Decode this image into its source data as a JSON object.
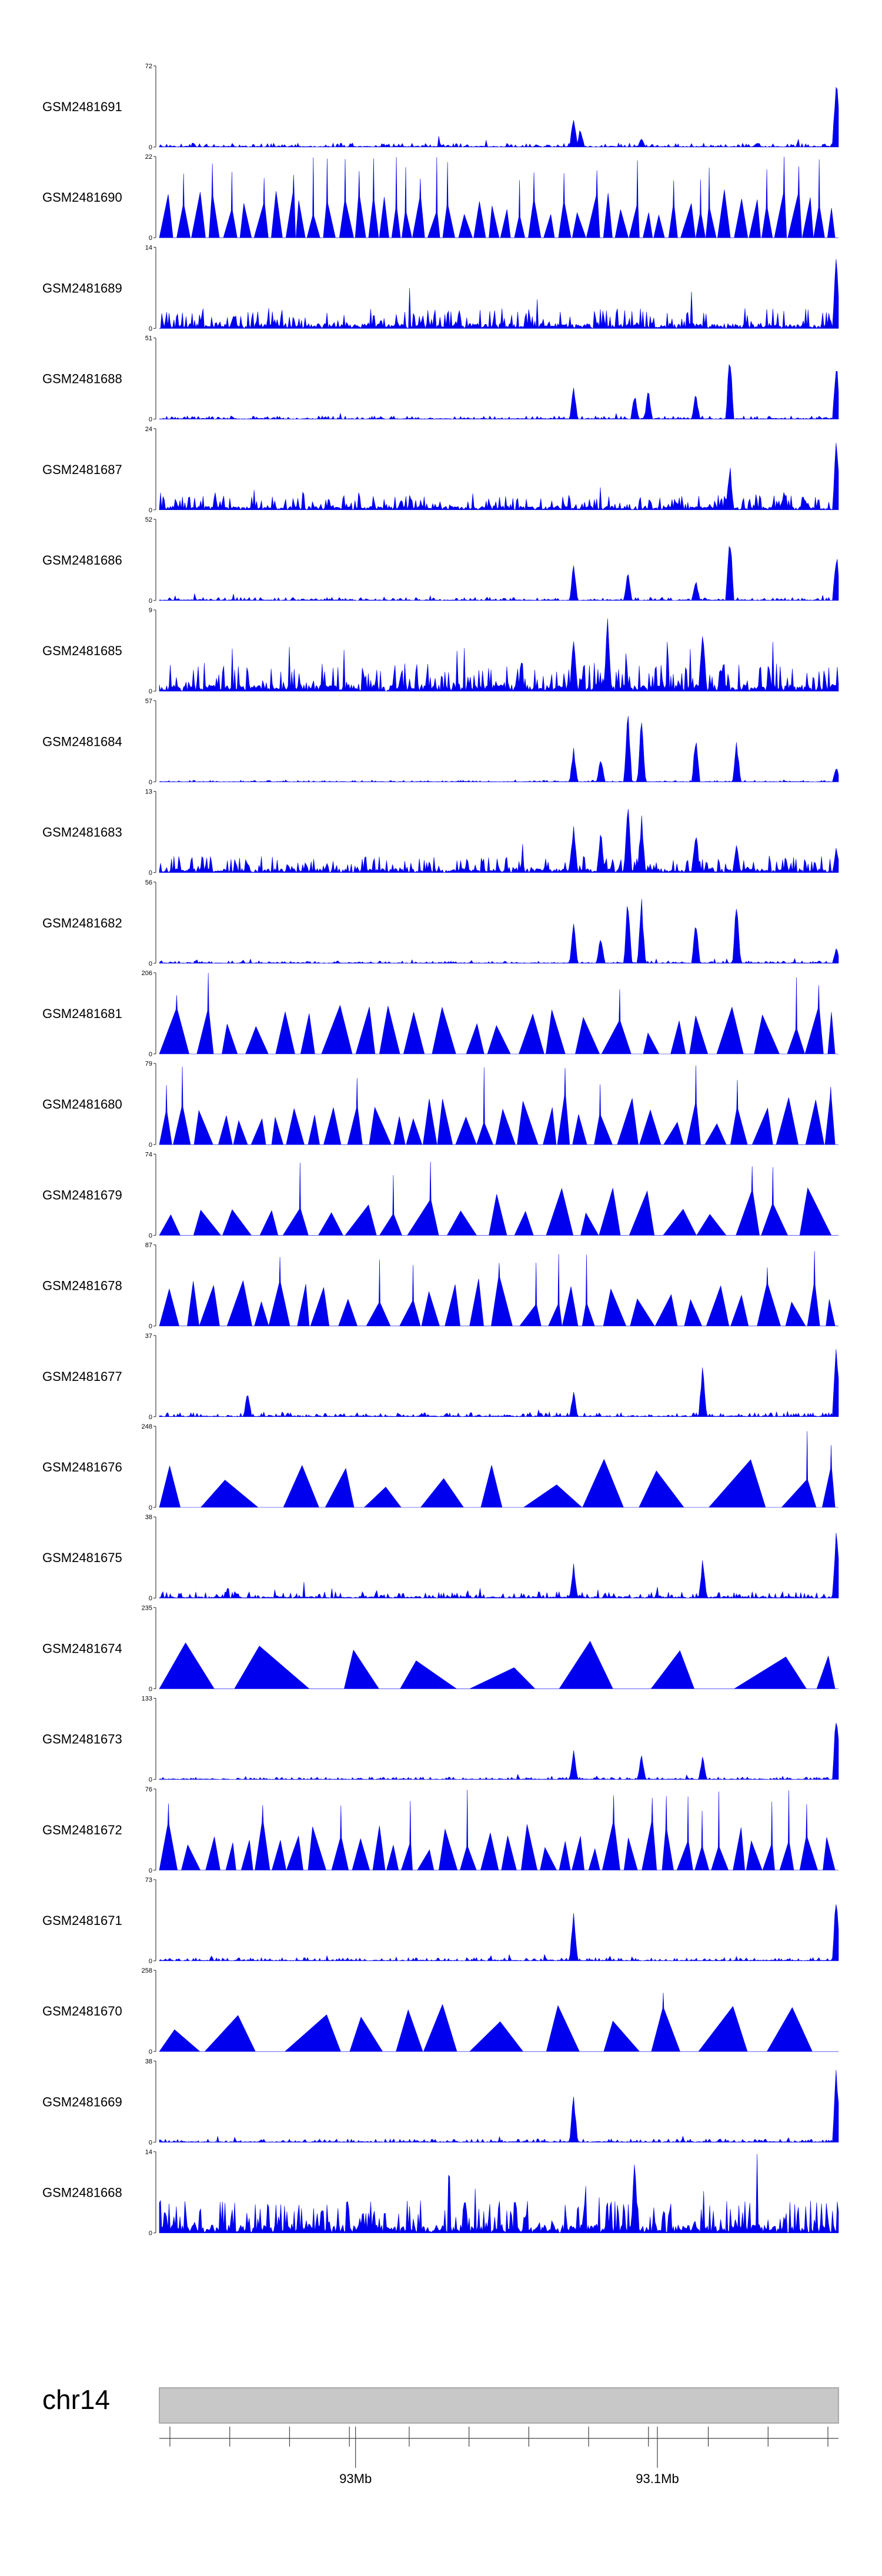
{
  "chart_data": {
    "type": "area",
    "title": "",
    "xlabel": "",
    "ylabel": "",
    "region_start_mb": 92.935,
    "region_end_mb": 93.16,
    "colors": {
      "signal": "#0000ee",
      "axis": "#444444",
      "ideogram_fill": "#c8c8c8",
      "ideogram_stroke": "#999999"
    },
    "tracks": [
      {
        "name": "GSM2481691",
        "ymin": "0",
        "ymax": "72",
        "style": "dense",
        "seed": 1,
        "noise": 0.05,
        "peaks": [
          [
            0.61,
            0.42
          ],
          [
            0.62,
            0.25
          ],
          [
            0.71,
            0.12
          ],
          [
            0.997,
            1.0
          ]
        ]
      },
      {
        "name": "GSM2481690",
        "ymin": "0",
        "ymax": "22",
        "style": "tri",
        "seed": 2,
        "gap": 0.006,
        "spikes": 0.5
      },
      {
        "name": "GSM2481689",
        "ymin": "0",
        "ymax": "14",
        "style": "dense",
        "seed": 3,
        "noise": 0.25,
        "peaks": [
          [
            0.997,
            1.0
          ]
        ]
      },
      {
        "name": "GSM2481688",
        "ymin": "0",
        "ymax": "51",
        "style": "dense",
        "seed": 4,
        "noise": 0.04,
        "peaks": [
          [
            0.61,
            0.45
          ],
          [
            0.7,
            0.35
          ],
          [
            0.72,
            0.4
          ],
          [
            0.79,
            0.35
          ],
          [
            0.84,
            0.95
          ],
          [
            0.997,
            0.8
          ]
        ]
      },
      {
        "name": "GSM2481687",
        "ymin": "0",
        "ymax": "24",
        "style": "dense",
        "seed": 5,
        "noise": 0.18,
        "peaks": [
          [
            0.84,
            0.6
          ],
          [
            0.92,
            0.25
          ],
          [
            0.997,
            1.0
          ]
        ]
      },
      {
        "name": "GSM2481686",
        "ymin": "0",
        "ymax": "52",
        "style": "dense",
        "seed": 6,
        "noise": 0.04,
        "peaks": [
          [
            0.61,
            0.5
          ],
          [
            0.69,
            0.4
          ],
          [
            0.79,
            0.3
          ],
          [
            0.84,
            0.95
          ],
          [
            0.997,
            0.65
          ]
        ]
      },
      {
        "name": "GSM2481685",
        "ymin": "0",
        "ymax": "9",
        "style": "dense",
        "seed": 7,
        "noise": 0.35,
        "peaks": [
          [
            0.61,
            0.75
          ],
          [
            0.66,
            1.0
          ],
          [
            0.8,
            0.9
          ]
        ]
      },
      {
        "name": "GSM2481684",
        "ymin": "0",
        "ymax": "57",
        "style": "dense",
        "seed": 8,
        "noise": 0.02,
        "peaks": [
          [
            0.61,
            0.45
          ],
          [
            0.65,
            0.35
          ],
          [
            0.69,
            1.0
          ],
          [
            0.71,
            0.9
          ],
          [
            0.79,
            0.65
          ],
          [
            0.85,
            0.55
          ],
          [
            0.997,
            0.2
          ]
        ]
      },
      {
        "name": "GSM2481683",
        "ymin": "0",
        "ymax": "13",
        "style": "dense",
        "seed": 9,
        "noise": 0.2,
        "peaks": [
          [
            0.61,
            0.7
          ],
          [
            0.65,
            0.6
          ],
          [
            0.69,
            0.95
          ],
          [
            0.71,
            0.75
          ],
          [
            0.79,
            0.6
          ],
          [
            0.85,
            0.4
          ],
          [
            0.997,
            0.35
          ]
        ]
      },
      {
        "name": "GSM2481682",
        "ymin": "0",
        "ymax": "56",
        "style": "dense",
        "seed": 10,
        "noise": 0.03,
        "peaks": [
          [
            0.61,
            0.6
          ],
          [
            0.65,
            0.4
          ],
          [
            0.69,
            0.9
          ],
          [
            0.71,
            0.85
          ],
          [
            0.79,
            0.6
          ],
          [
            0.85,
            0.85
          ],
          [
            0.997,
            0.2
          ]
        ]
      },
      {
        "name": "GSM2481681",
        "ymin": "0",
        "ymax": "206",
        "style": "tri",
        "seed": 11,
        "gap": 0.018,
        "spikes": 0.15
      },
      {
        "name": "GSM2481680",
        "ymin": "0",
        "ymax": "79",
        "style": "tri",
        "seed": 12,
        "gap": 0.012,
        "spikes": 0.2
      },
      {
        "name": "GSM2481679",
        "ymin": "0",
        "ymax": "74",
        "style": "tri",
        "seed": 13,
        "gap": 0.02,
        "spikes": 0.3
      },
      {
        "name": "GSM2481678",
        "ymin": "0",
        "ymax": "87",
        "style": "tri",
        "seed": 14,
        "gap": 0.014,
        "spikes": 0.3
      },
      {
        "name": "GSM2481677",
        "ymin": "0",
        "ymax": "37",
        "style": "dense",
        "seed": 15,
        "noise": 0.05,
        "peaks": [
          [
            0.13,
            0.35
          ],
          [
            0.61,
            0.35
          ],
          [
            0.8,
            0.7
          ],
          [
            0.997,
            1.0
          ]
        ]
      },
      {
        "name": "GSM2481676",
        "ymin": "0",
        "ymax": "248",
        "style": "tri",
        "seed": 16,
        "gap": 0.04,
        "spikes": 0.1
      },
      {
        "name": "GSM2481675",
        "ymin": "0",
        "ymax": "38",
        "style": "dense",
        "seed": 17,
        "noise": 0.08,
        "peaks": [
          [
            0.61,
            0.45
          ],
          [
            0.8,
            0.5
          ],
          [
            0.997,
            1.0
          ]
        ]
      },
      {
        "name": "GSM2481674",
        "ymin": "0",
        "ymax": "235",
        "style": "tri",
        "seed": 18,
        "gap": 0.06,
        "spikes": 0.0
      },
      {
        "name": "GSM2481673",
        "ymin": "0",
        "ymax": "133",
        "style": "dense",
        "seed": 19,
        "noise": 0.03,
        "peaks": [
          [
            0.61,
            0.4
          ],
          [
            0.71,
            0.35
          ],
          [
            0.8,
            0.3
          ],
          [
            0.997,
            1.0
          ]
        ]
      },
      {
        "name": "GSM2481672",
        "ymin": "0",
        "ymax": "76",
        "style": "tri",
        "seed": 20,
        "gap": 0.009,
        "spikes": 0.3
      },
      {
        "name": "GSM2481671",
        "ymin": "0",
        "ymax": "73",
        "style": "dense",
        "seed": 21,
        "noise": 0.04,
        "peaks": [
          [
            0.61,
            0.7
          ],
          [
            0.997,
            1.0
          ]
        ]
      },
      {
        "name": "GSM2481670",
        "ymin": "0",
        "ymax": "258",
        "style": "tri",
        "seed": 22,
        "gap": 0.05,
        "spikes": 0.05
      },
      {
        "name": "GSM2481669",
        "ymin": "0",
        "ymax": "38",
        "style": "dense",
        "seed": 23,
        "noise": 0.04,
        "peaks": [
          [
            0.61,
            0.65
          ],
          [
            0.997,
            1.0
          ]
        ]
      },
      {
        "name": "GSM2481668",
        "ymin": "0",
        "ymax": "14",
        "style": "dense",
        "seed": 24,
        "noise": 0.4,
        "peaks": [
          [
            0.7,
            0.95
          ]
        ]
      }
    ],
    "chromosome": "chr14",
    "genome_axis": {
      "ticks": [
        {
          "pos_mb": 93.0,
          "label": "93Mb"
        },
        {
          "pos_mb": 93.1,
          "label": "93.1Mb"
        }
      ],
      "minor_tick_count": 12
    }
  }
}
